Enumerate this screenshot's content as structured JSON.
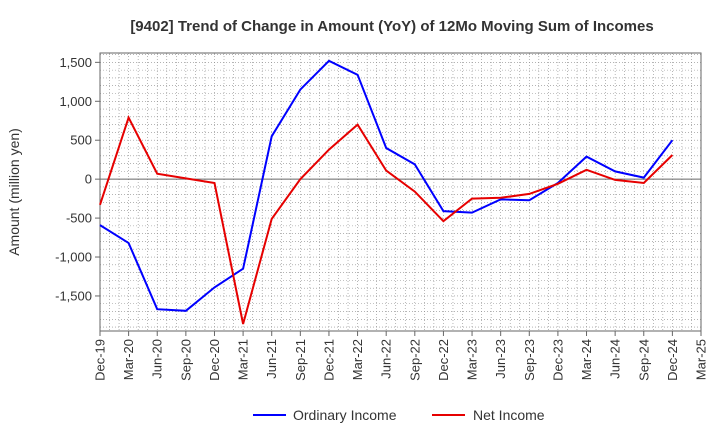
{
  "chart_data": {
    "type": "line",
    "title": "[9402]  Trend of Change in Amount (YoY) of 12Mo Moving Sum of Incomes",
    "xlabel": "",
    "ylabel": "Amount (million yen)",
    "ylim": [
      -1950,
      1620
    ],
    "yticks": [
      1500,
      1000,
      500,
      0,
      -500,
      -1000,
      -1500
    ],
    "ytick_labels": [
      "1,500",
      "1,000",
      "500",
      "0",
      "-500",
      "-1,000",
      "-1,500"
    ],
    "categories": [
      "Dec-19",
      "Mar-20",
      "Jun-20",
      "Sep-20",
      "Dec-20",
      "Mar-21",
      "Jun-21",
      "Sep-21",
      "Dec-21",
      "Mar-22",
      "Jun-22",
      "Sep-22",
      "Dec-22",
      "Mar-23",
      "Jun-23",
      "Sep-23",
      "Dec-23",
      "Mar-24",
      "Jun-24",
      "Sep-24",
      "Dec-24",
      "Mar-25"
    ],
    "grid": true,
    "legend_position": "bottom",
    "series": [
      {
        "name": "Ordinary Income",
        "color": "#0000ff",
        "values": [
          -590,
          -820,
          -1670,
          -1690,
          -1390,
          -1150,
          550,
          1150,
          1520,
          1340,
          400,
          190,
          -410,
          -430,
          -260,
          -270,
          -50,
          290,
          100,
          20,
          500,
          null
        ]
      },
      {
        "name": "Net Income",
        "color": "#e60000",
        "values": [
          -330,
          790,
          70,
          10,
          -50,
          -1860,
          -510,
          0,
          380,
          700,
          110,
          -160,
          -540,
          -250,
          -240,
          -190,
          -60,
          120,
          -10,
          -50,
          310,
          null
        ]
      }
    ]
  }
}
